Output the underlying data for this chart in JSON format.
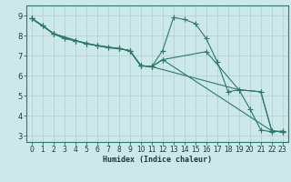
{
  "title": "",
  "xlabel": "Humidex (Indice chaleur)",
  "ylabel": "",
  "xlim": [
    -0.5,
    23.5
  ],
  "ylim": [
    2.7,
    9.5
  ],
  "xticks": [
    0,
    1,
    2,
    3,
    4,
    5,
    6,
    7,
    8,
    9,
    10,
    11,
    12,
    13,
    14,
    15,
    16,
    17,
    18,
    19,
    20,
    21,
    22,
    23
  ],
  "yticks": [
    3,
    4,
    5,
    6,
    7,
    8,
    9
  ],
  "bg_color": "#cce8e8",
  "line_color": "#2a7a6a",
  "grid_color": "#aad0d0",
  "lines": [
    {
      "x": [
        0,
        1,
        2,
        3,
        4,
        5,
        6,
        7,
        8,
        9,
        10,
        11,
        12,
        13,
        14,
        15,
        16,
        17,
        18,
        19,
        20,
        21,
        22,
        23
      ],
      "y": [
        8.85,
        8.5,
        8.1,
        7.85,
        7.75,
        7.6,
        7.5,
        7.4,
        7.35,
        7.25,
        6.5,
        6.45,
        7.25,
        8.9,
        8.8,
        8.6,
        7.85,
        6.7,
        5.2,
        5.3,
        4.35,
        3.3,
        3.2,
        3.25
      ]
    },
    {
      "x": [
        0,
        1,
        2,
        3,
        4,
        5,
        6,
        7,
        8,
        9,
        10,
        11,
        12,
        16,
        19,
        21,
        22,
        23
      ],
      "y": [
        8.85,
        8.5,
        8.1,
        7.85,
        7.75,
        7.6,
        7.5,
        7.4,
        7.35,
        7.25,
        6.5,
        6.45,
        6.8,
        7.2,
        5.3,
        5.2,
        3.25,
        3.2
      ]
    },
    {
      "x": [
        0,
        2,
        4,
        6,
        8,
        9,
        10,
        11,
        12,
        22,
        23
      ],
      "y": [
        8.85,
        8.1,
        7.75,
        7.5,
        7.35,
        7.25,
        6.5,
        6.45,
        6.8,
        3.25,
        3.2
      ]
    },
    {
      "x": [
        0,
        2,
        5,
        8,
        9,
        10,
        11,
        19,
        21,
        22,
        23
      ],
      "y": [
        8.85,
        8.1,
        7.6,
        7.35,
        7.25,
        6.5,
        6.45,
        5.3,
        5.2,
        3.25,
        3.2
      ]
    }
  ]
}
